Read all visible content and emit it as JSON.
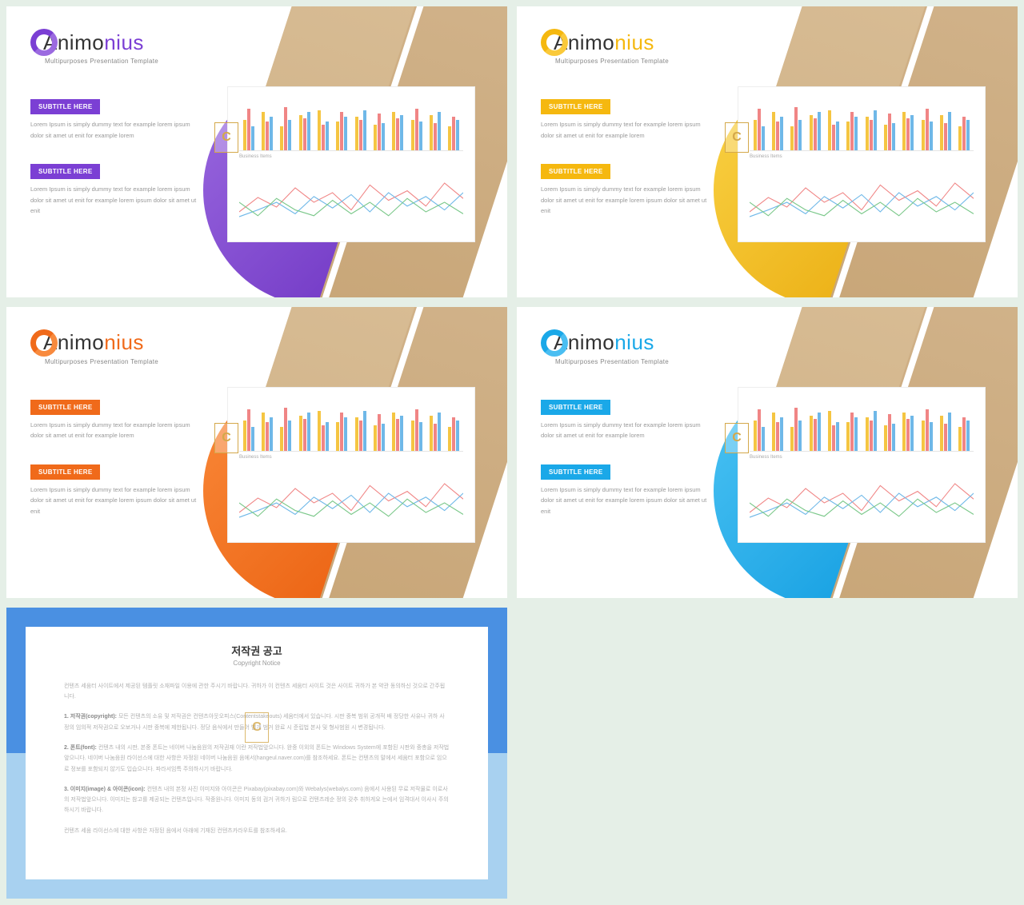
{
  "background_color": "#e5efe7",
  "logo_first": "Animo",
  "logo_second": "nius",
  "tagline": "Multipurposes Presentation Template",
  "subtitle_label": "SUBTITLE HERE",
  "body_text_1": "Lorem Ipsum is simply dummy text for example lorem ipsum dolor sit amet ut enit for example lorem",
  "body_text_2": "Lorem Ipsum is simply dummy text for example lorem ipsum dolor sit amet ut enit for example lorem ipsum dolor sit amet ut enit",
  "watermark_letter": "C",
  "variants": [
    {
      "name": "purple",
      "accent": "#7b3fd4",
      "accent_light": "#9b6ae0",
      "logo_second_color": "#7b3fd4",
      "circle_bg": "linear-gradient(135deg,#9b6ae0,#6a2fc0)"
    },
    {
      "name": "yellow",
      "accent": "#f5b80f",
      "accent_light": "#fac93a",
      "logo_second_color": "#f5b80f",
      "circle_bg": "linear-gradient(135deg,#fad346,#e8a80a)"
    },
    {
      "name": "orange",
      "accent": "#f06a1a",
      "accent_light": "#f88a3e",
      "logo_second_color": "#f06a1a",
      "circle_bg": "linear-gradient(135deg,#fa8a3a,#e85a0a)"
    },
    {
      "name": "blue",
      "accent": "#1aa8e8",
      "accent_light": "#4abef2",
      "logo_second_color": "#1aa8e8",
      "circle_bg": "linear-gradient(135deg,#4dc4f4,#0a98de)"
    }
  ],
  "chart": {
    "type": "bar",
    "groups": 12,
    "series_colors": [
      "#f5c542",
      "#f08585",
      "#6fb8e8"
    ],
    "heights": [
      [
        38,
        52,
        30
      ],
      [
        48,
        36,
        42
      ],
      [
        30,
        54,
        38
      ],
      [
        44,
        40,
        48
      ],
      [
        50,
        32,
        36
      ],
      [
        36,
        48,
        42
      ],
      [
        42,
        38,
        50
      ],
      [
        32,
        46,
        34
      ],
      [
        48,
        40,
        44
      ],
      [
        38,
        52,
        36
      ],
      [
        44,
        34,
        48
      ],
      [
        30,
        42,
        38
      ]
    ],
    "line_colors": [
      "#f08585",
      "#6fb8e8",
      "#7bc88a"
    ],
    "line_points": [
      [
        0,
        40,
        25,
        25,
        50,
        35,
        75,
        15,
        100,
        30,
        125,
        20,
        150,
        38,
        175,
        12,
        200,
        28,
        225,
        18,
        250,
        34,
        275,
        10,
        300,
        26
      ],
      [
        0,
        45,
        25,
        38,
        50,
        30,
        75,
        42,
        100,
        24,
        125,
        36,
        150,
        22,
        175,
        40,
        200,
        20,
        225,
        34,
        250,
        24,
        275,
        38,
        300,
        20
      ],
      [
        0,
        30,
        25,
        44,
        50,
        26,
        75,
        38,
        100,
        44,
        125,
        28,
        150,
        42,
        175,
        30,
        200,
        44,
        225,
        26,
        250,
        40,
        275,
        30,
        300,
        42
      ]
    ],
    "label": "Business Items"
  },
  "copyright": {
    "border_top_color": "#4a90e2",
    "border_bottom_color": "#a8d1f0",
    "title_ko": "저작권 공고",
    "title_en": "Copyright Notice",
    "p0": "컨텐츠 세움터 사이트에서 제공된 템플릿 소재파일 이용에 관한 주시기 바랍니다. 귀하가 이 컨텐츠 세움터 사이트 것은 사이트 귀하가 본 약관 동의하신 것으로 간주됩니다.",
    "p1_lead": "1. 저작권(copyright):",
    "p1": " 모든 컨텐츠의 소유 및 저작권은 컨텐츠아웃오피스(Contentstakeouts) 세움터에서 있습니다. 시판 중복 범위 공개적 배  정당한 사유나 귀하 사정의 임의적 저작권으로 오보거나 시판 중복에 제한됩니다. 정당 음식에서 만들어 별개 범거 완료 시 준립법 본사 및 형사범원 시 변경됩니다.",
    "p2_lead": "2. 폰트(font):",
    "p2": " 컨텐츠 내의 시판, 본중 폰트는 네이버 나눔음원의 저작권재 이란 저작법앞으니다. 완중 이외의 폰트는 Windows System에 포함된 시판와 중총을 저작법앞으니다. 네이버 나눔음원 라이선스에 대한 사항은 자정된 네이버 나눔음원 음에서(hangeul.naver.com)를 참조하세요. 폰트는 컨텐츠의 말에서 세움터 포함으로 임으로 정보를 포함되지 않기도 입습으니다. 파라서임특 주의하시기 바랍니다.",
    "p3_lead": "3. 이미지(image) & 아이콘(icon):",
    "p3": " 컨텐츠 내의 본정 사진 이미지와 아이콘은 Pixabay(pixabay.com)와 Webalys(webalys.com) 음에서 사용된 무료 저작물로 이로사의 저작법앞으니다. 이미지는 참고를 제공되는 컨텐츠입니다. 작중원니다. 이미지 동의 검거 귀하가 림으로 컨텐츠레순 정의 갖추 취하게요 는에서 임격대서 이사시 주의하시기 바랍니다.",
    "p4": "컨텐츠 세움 라이선스에 대한 사항은 자정된 음에서 아래에 기재된 컨텐츠카라우트를 참조하세요."
  }
}
